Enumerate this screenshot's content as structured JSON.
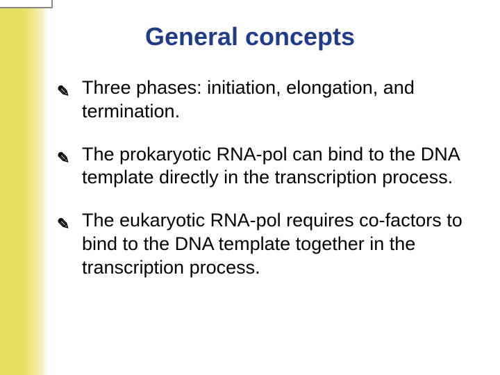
{
  "slide": {
    "title": "General concepts",
    "title_color": "#1f3b8a",
    "title_fontsize": 36,
    "background_color": "#ffffff",
    "left_bar_color": "#e8e060",
    "bullets": [
      {
        "lead": "Three",
        "rest": " phases: initiation, elongation, and termination."
      },
      {
        "lead": "The",
        "rest": " prokaryotic RNA-pol can bind to the DNA template directly in the transcription process."
      },
      {
        "lead": "The",
        "rest": " eukaryotic RNA-pol requires co-factors to bind to the DNA template together in the transcription process."
      }
    ],
    "bullet_symbol": "༎",
    "body_fontsize": 27,
    "body_color": "#000000"
  }
}
